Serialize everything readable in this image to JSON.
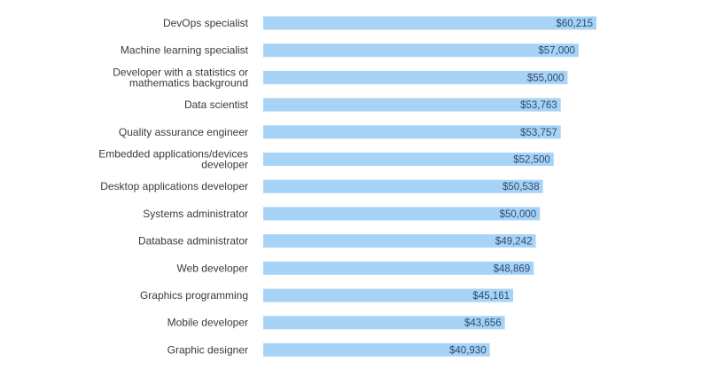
{
  "chart_data": {
    "type": "bar",
    "orientation": "horizontal",
    "categories": [
      [
        "DevOps specialist"
      ],
      [
        "Machine learning specialist"
      ],
      [
        "Developer with a statistics or",
        "mathematics background"
      ],
      [
        "Data scientist"
      ],
      [
        "Quality assurance engineer"
      ],
      [
        "Embedded applications/devices",
        "developer"
      ],
      [
        "Desktop applications developer"
      ],
      [
        "Systems administrator"
      ],
      [
        "Database administrator"
      ],
      [
        "Web developer"
      ],
      [
        "Graphics programming"
      ],
      [
        "Mobile developer"
      ],
      [
        "Graphic designer"
      ]
    ],
    "values": [
      60215,
      57000,
      55000,
      53763,
      53757,
      52500,
      50538,
      50000,
      49242,
      48869,
      45161,
      43656,
      40930
    ],
    "value_labels": [
      "$60,215",
      "$57,000",
      "$55,000",
      "$53,763",
      "$53,757",
      "$52,500",
      "$50,538",
      "$50,000",
      "$49,242",
      "$48,869",
      "$45,161",
      "$43,656",
      "$40,930"
    ],
    "xlim": [
      0,
      60215
    ],
    "bar_color": "#a7d3f7",
    "label_color": "#2f4a6d",
    "grid": false,
    "legend": false
  }
}
